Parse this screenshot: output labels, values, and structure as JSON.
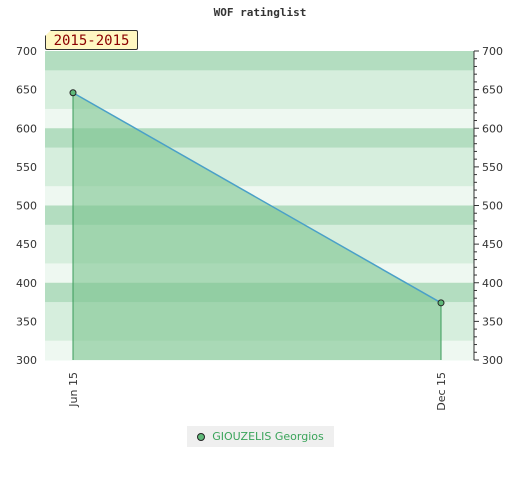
{
  "chart_data": {
    "type": "area",
    "title": "WOF ratinglist",
    "badge": "2015-2015",
    "categories": [
      "Jun 15",
      "Dec 15"
    ],
    "series": [
      {
        "name": "GIOUZELIS Georgios",
        "values": [
          646,
          374
        ]
      }
    ],
    "ylim": [
      300,
      700
    ],
    "yticks": [
      300,
      350,
      400,
      450,
      500,
      550,
      600,
      650,
      700
    ],
    "grid": true,
    "legend": "bottom",
    "colors": {
      "fill": "#7cc48f",
      "line": "#4aa0c8",
      "marker": "#5fb979",
      "band_dark": "#b3ddc0",
      "band_light": "#d6eedd",
      "band_pale": "#eef8f1"
    }
  }
}
